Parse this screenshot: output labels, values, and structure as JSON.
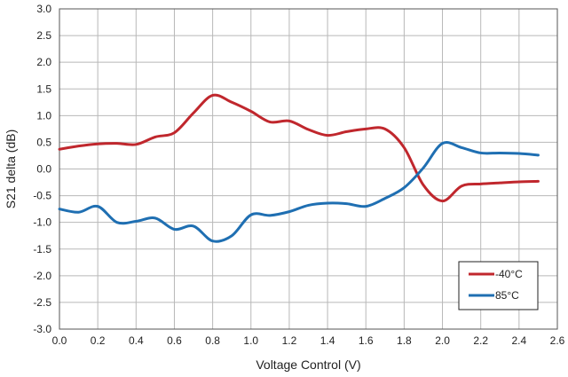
{
  "chart_data": {
    "type": "line",
    "title": "",
    "xlabel": "Voltage Control (V)",
    "ylabel": "S21  delta (dB)",
    "xlim": [
      0.0,
      2.6
    ],
    "ylim": [
      -3.0,
      3.0
    ],
    "x_ticks": [
      "0.0",
      "0.2",
      "0.4",
      "0.6",
      "0.8",
      "1.0",
      "1.2",
      "1.4",
      "1.6",
      "1.8",
      "2.0",
      "2.2",
      "2.4",
      "2.6"
    ],
    "y_ticks": [
      "3.0",
      "2.5",
      "2.0",
      "1.5",
      "1.0",
      "0.5",
      "0.0",
      "-0.5",
      "-1.0",
      "-1.5",
      "-2.0",
      "-2.5",
      "-3.0"
    ],
    "grid": true,
    "legend_position": "bottom-right",
    "series": [
      {
        "name": "-40°C",
        "color": "#c0272d",
        "points": [
          [
            0.0,
            0.37
          ],
          [
            0.1,
            0.43
          ],
          [
            0.2,
            0.47
          ],
          [
            0.3,
            0.48
          ],
          [
            0.4,
            0.46
          ],
          [
            0.5,
            0.6
          ],
          [
            0.6,
            0.68
          ],
          [
            0.7,
            1.05
          ],
          [
            0.8,
            1.38
          ],
          [
            0.9,
            1.25
          ],
          [
            1.0,
            1.08
          ],
          [
            1.1,
            0.88
          ],
          [
            1.2,
            0.9
          ],
          [
            1.3,
            0.74
          ],
          [
            1.4,
            0.63
          ],
          [
            1.5,
            0.7
          ],
          [
            1.6,
            0.75
          ],
          [
            1.7,
            0.75
          ],
          [
            1.8,
            0.4
          ],
          [
            1.9,
            -0.3
          ],
          [
            2.0,
            -0.6
          ],
          [
            2.1,
            -0.32
          ],
          [
            2.2,
            -0.28
          ],
          [
            2.3,
            -0.26
          ],
          [
            2.4,
            -0.24
          ],
          [
            2.5,
            -0.23
          ]
        ]
      },
      {
        "name": "85°C",
        "color": "#1f6fb2",
        "points": [
          [
            0.0,
            -0.75
          ],
          [
            0.1,
            -0.81
          ],
          [
            0.2,
            -0.7
          ],
          [
            0.3,
            -1.0
          ],
          [
            0.4,
            -0.98
          ],
          [
            0.5,
            -0.92
          ],
          [
            0.6,
            -1.13
          ],
          [
            0.7,
            -1.07
          ],
          [
            0.8,
            -1.35
          ],
          [
            0.9,
            -1.25
          ],
          [
            1.0,
            -0.86
          ],
          [
            1.1,
            -0.87
          ],
          [
            1.2,
            -0.8
          ],
          [
            1.3,
            -0.68
          ],
          [
            1.4,
            -0.64
          ],
          [
            1.5,
            -0.65
          ],
          [
            1.6,
            -0.7
          ],
          [
            1.7,
            -0.55
          ],
          [
            1.8,
            -0.35
          ],
          [
            1.9,
            0.02
          ],
          [
            2.0,
            0.48
          ],
          [
            2.1,
            0.4
          ],
          [
            2.2,
            0.3
          ],
          [
            2.3,
            0.3
          ],
          [
            2.4,
            0.29
          ],
          [
            2.5,
            0.26
          ]
        ]
      }
    ]
  }
}
